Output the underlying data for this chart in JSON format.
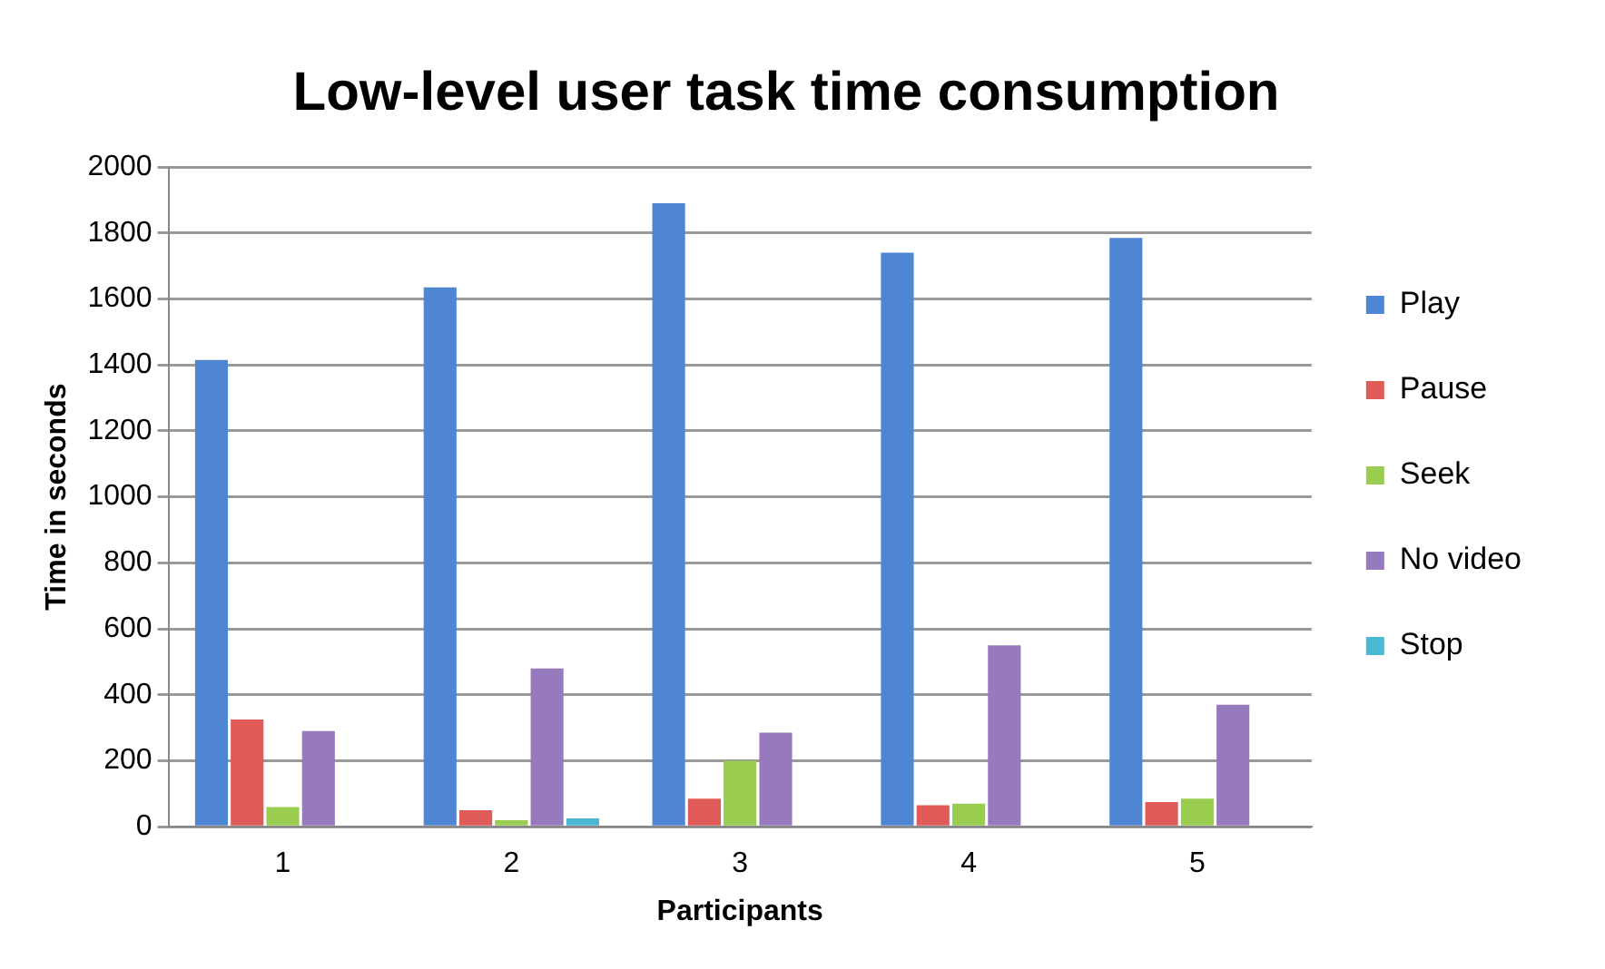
{
  "chart_data": {
    "type": "bar",
    "title": "Low-level user task time consumption",
    "xlabel": "Participants",
    "ylabel": "Time in seconds",
    "categories": [
      "1",
      "2",
      "3",
      "4",
      "5"
    ],
    "series": [
      {
        "name": "Play",
        "color": "#4f86d4",
        "values": [
          1415,
          1635,
          1890,
          1740,
          1785
        ]
      },
      {
        "name": "Pause",
        "color": "#e05a57",
        "values": [
          325,
          50,
          85,
          65,
          75
        ]
      },
      {
        "name": "Seek",
        "color": "#9acd4f",
        "values": [
          60,
          20,
          200,
          70,
          85
        ]
      },
      {
        "name": "No video",
        "color": "#9779bd",
        "values": [
          290,
          480,
          285,
          550,
          370
        ]
      },
      {
        "name": "Stop",
        "color": "#4bb8d4",
        "values": [
          null,
          25,
          null,
          null,
          0
        ]
      }
    ],
    "ylim": [
      0,
      2000
    ],
    "yticks": [
      0,
      200,
      400,
      600,
      800,
      1000,
      1200,
      1400,
      1600,
      1800,
      2000
    ],
    "grid": "y",
    "legend": "right"
  }
}
